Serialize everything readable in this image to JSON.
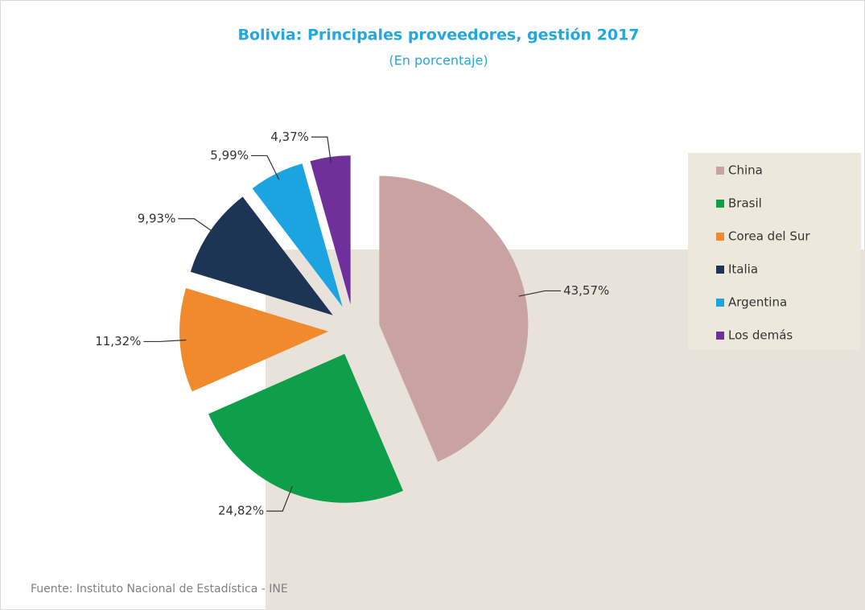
{
  "chart_data": {
    "type": "pie",
    "title": "Bolivia: Principales proveedores, gestión 2017",
    "subtitle": "(En porcentaje)",
    "categories": [
      "China",
      "Brasil",
      "Corea del Sur",
      "Italia",
      "Argentina",
      "Los demás"
    ],
    "values": [
      43.57,
      24.82,
      11.32,
      9.93,
      5.99,
      4.37
    ],
    "value_labels": [
      "43,57%",
      "24,82%",
      "11,32%",
      "9,93%",
      "5,99%",
      "4,37%"
    ],
    "colors": [
      "#c9a2a2",
      "#0f9f4a",
      "#f08a2c",
      "#1e3454",
      "#1ba4e0",
      "#70309c"
    ],
    "legend": "right",
    "source": "Fuente: Instituto Nacional de Estadística - INE"
  }
}
